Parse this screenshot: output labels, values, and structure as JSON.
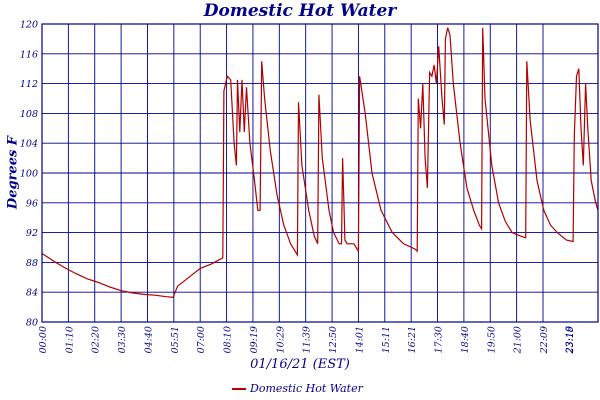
{
  "chart_data": {
    "type": "line",
    "title": "Domestic Hot Water",
    "xlabel": "01/16/21 (EST)",
    "ylabel": "Degrees F",
    "ylim": [
      80,
      120
    ],
    "y_ticks": [
      "80",
      "84",
      "88",
      "92",
      "96",
      "100",
      "104",
      "108",
      "112",
      "116",
      "120"
    ],
    "x_ticks": [
      "00:00",
      "01:10",
      "02:20",
      "03:30",
      "04:40",
      "05:51",
      "07:00",
      "08:10",
      "09:19",
      "10:29",
      "11:39",
      "12:50",
      "14:01",
      "15:11",
      "16:21",
      "17:30",
      "18:40",
      "19:50",
      "21:00",
      "22:09",
      "23:18",
      "23:19"
    ],
    "grid": true,
    "legend_position": "bottom",
    "colors": {
      "series": "#b00000",
      "grid": "#00008b",
      "text": "#00008b"
    },
    "series": [
      {
        "name": "Domestic Hot Water",
        "points": [
          [
            0.0,
            89.2
          ],
          [
            0.3,
            88.6
          ],
          [
            0.6,
            88.0
          ],
          [
            1.0,
            87.3
          ],
          [
            1.5,
            86.5
          ],
          [
            2.0,
            85.8
          ],
          [
            2.5,
            85.3
          ],
          [
            3.0,
            84.7
          ],
          [
            3.5,
            84.2
          ],
          [
            4.0,
            83.9
          ],
          [
            4.5,
            83.7
          ],
          [
            5.0,
            83.6
          ],
          [
            5.5,
            83.4
          ],
          [
            5.8,
            83.3
          ],
          [
            6.0,
            84.8
          ],
          [
            6.5,
            86.0
          ],
          [
            7.0,
            87.2
          ],
          [
            7.5,
            87.8
          ],
          [
            7.8,
            88.3
          ],
          [
            8.0,
            88.6
          ],
          [
            8.05,
            111.0
          ],
          [
            8.2,
            113.0
          ],
          [
            8.35,
            112.5
          ],
          [
            8.5,
            104.0
          ],
          [
            8.6,
            101.0
          ],
          [
            8.65,
            112.5
          ],
          [
            8.75,
            105.5
          ],
          [
            8.85,
            112.5
          ],
          [
            8.95,
            105.5
          ],
          [
            9.05,
            111.5
          ],
          [
            9.2,
            104.0
          ],
          [
            9.4,
            99.0
          ],
          [
            9.55,
            95.0
          ],
          [
            9.65,
            95.0
          ],
          [
            9.72,
            115.0
          ],
          [
            9.85,
            110.0
          ],
          [
            10.1,
            103.0
          ],
          [
            10.4,
            97.0
          ],
          [
            10.7,
            93.0
          ],
          [
            11.0,
            90.5
          ],
          [
            11.2,
            89.5
          ],
          [
            11.3,
            89.0
          ],
          [
            11.35,
            109.5
          ],
          [
            11.5,
            101.0
          ],
          [
            11.8,
            95.0
          ],
          [
            12.05,
            91.5
          ],
          [
            12.2,
            90.5
          ],
          [
            12.25,
            110.5
          ],
          [
            12.4,
            102.0
          ],
          [
            12.7,
            95.0
          ],
          [
            12.9,
            92.0
          ],
          [
            13.15,
            90.5
          ],
          [
            13.25,
            90.5
          ],
          [
            13.3,
            102.0
          ],
          [
            13.35,
            97.0
          ],
          [
            13.4,
            91.0
          ],
          [
            13.5,
            90.5
          ],
          [
            13.8,
            90.5
          ],
          [
            14.0,
            89.5
          ],
          [
            14.05,
            113.0
          ],
          [
            14.3,
            108.0
          ],
          [
            14.6,
            100.0
          ],
          [
            15.0,
            95.0
          ],
          [
            15.5,
            92.0
          ],
          [
            16.0,
            90.5
          ],
          [
            16.5,
            89.8
          ],
          [
            16.6,
            89.5
          ],
          [
            16.65,
            110.0
          ],
          [
            16.75,
            106.0
          ],
          [
            16.85,
            112.0
          ],
          [
            16.95,
            102.0
          ],
          [
            17.05,
            98.0
          ],
          [
            17.15,
            113.5
          ],
          [
            17.25,
            113.0
          ],
          [
            17.35,
            114.5
          ],
          [
            17.45,
            112.0
          ],
          [
            17.55,
            117.0
          ],
          [
            17.7,
            110.0
          ],
          [
            17.8,
            106.5
          ],
          [
            17.85,
            118.0
          ],
          [
            17.95,
            119.5
          ],
          [
            18.05,
            118.5
          ],
          [
            18.2,
            112.0
          ],
          [
            18.5,
            104.0
          ],
          [
            18.8,
            98.0
          ],
          [
            19.1,
            95.0
          ],
          [
            19.35,
            93.0
          ],
          [
            19.45,
            92.5
          ],
          [
            19.5,
            119.5
          ],
          [
            19.6,
            110.0
          ],
          [
            19.9,
            101.0
          ],
          [
            20.2,
            96.0
          ],
          [
            20.5,
            93.5
          ],
          [
            20.8,
            92.0
          ],
          [
            21.2,
            91.5
          ],
          [
            21.4,
            91.3
          ],
          [
            21.45,
            115.0
          ],
          [
            21.6,
            107.0
          ],
          [
            21.9,
            99.0
          ],
          [
            22.2,
            95.0
          ],
          [
            22.5,
            93.0
          ],
          [
            22.8,
            92.0
          ],
          [
            23.2,
            91.0
          ],
          [
            23.5,
            90.8
          ],
          [
            23.55,
            105.0
          ],
          [
            23.65,
            113.0
          ],
          [
            23.75,
            114.0
          ],
          [
            23.85,
            106.0
          ],
          [
            23.95,
            101.0
          ],
          [
            24.05,
            112.0
          ],
          [
            24.15,
            106.0
          ],
          [
            24.3,
            99.0
          ],
          [
            24.5,
            96.0
          ],
          [
            24.6,
            95.0
          ]
        ]
      }
    ]
  }
}
